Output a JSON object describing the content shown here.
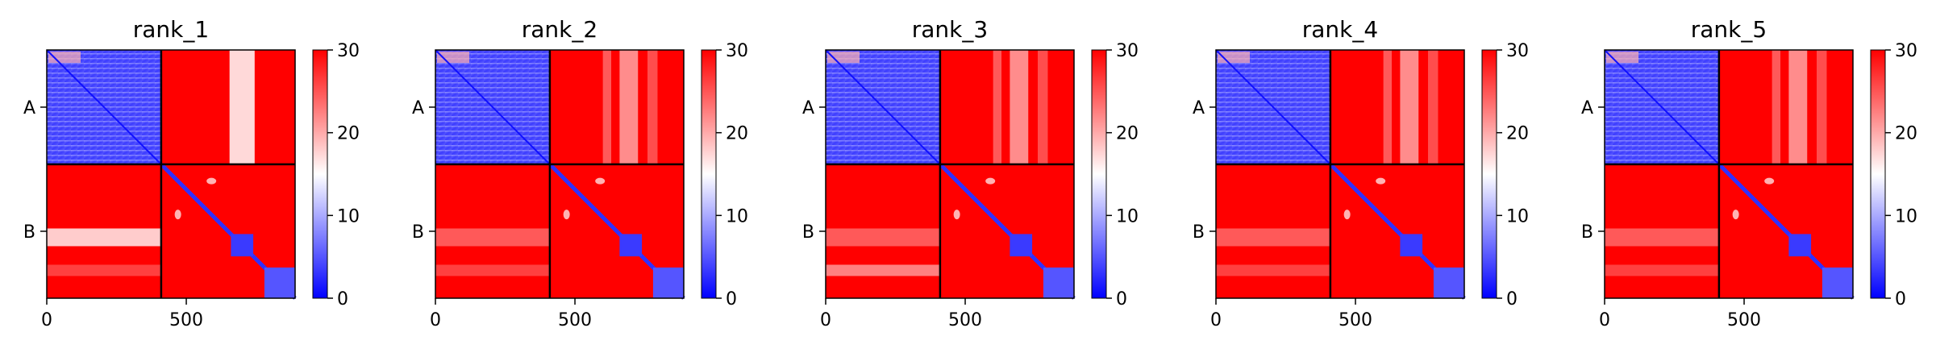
{
  "chart_data": {
    "type": "heatmap",
    "colorbar": {
      "ticks": [
        "0",
        "10",
        "20",
        "30"
      ],
      "tick_values": [
        0,
        10,
        20,
        30
      ],
      "range": [
        0,
        30
      ],
      "colors": {
        "low": "#0000ff",
        "mid": "#ffffff",
        "high": "#ff0000"
      }
    },
    "x_ticks": [
      "0",
      "500"
    ],
    "x_tick_values": [
      0,
      500
    ],
    "x_range": [
      0,
      890
    ],
    "chain_boundary": 410,
    "row_labels": [
      "A",
      "B"
    ],
    "panels": [
      {
        "title": "rank_1"
      },
      {
        "title": "rank_2"
      },
      {
        "title": "rank_3"
      },
      {
        "title": "rank_4"
      },
      {
        "title": "rank_5"
      }
    ]
  }
}
